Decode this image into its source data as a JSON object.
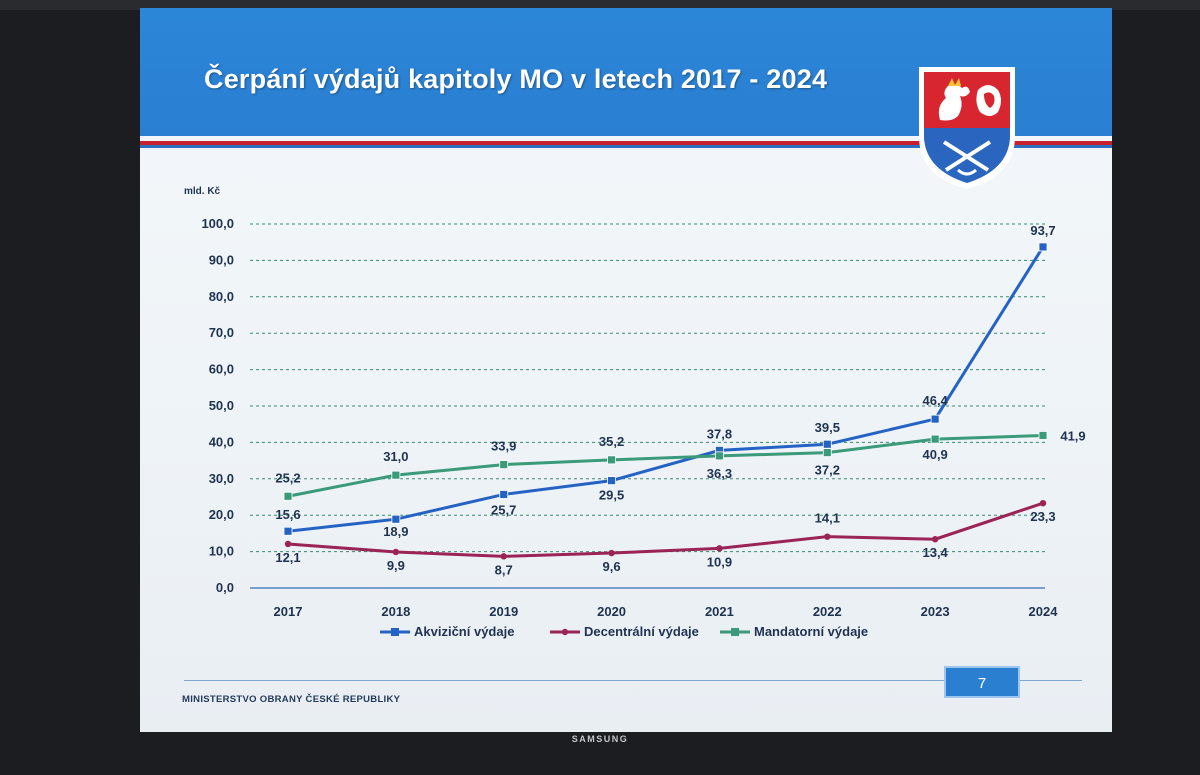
{
  "slide": {
    "title": "Čerpání výdajů kapitoly MO v letech 2017 - 2024",
    "footer": "MINISTERSTVO OBRANY ČESKÉ REPUBLIKY",
    "page_number": "7",
    "emblem_icon": "czech-ministry-of-defence-emblem"
  },
  "device": {
    "brand": "SAMSUNG"
  },
  "colors": {
    "header_blue": "#2a7fd1",
    "akvizicni": "#2463c4",
    "decentralni": "#9a2456",
    "mandatorni": "#3a9a7a"
  },
  "chart_data": {
    "type": "line",
    "ylabel": "mld. Kč",
    "x": [
      "2017",
      "2018",
      "2019",
      "2020",
      "2021",
      "2022",
      "2023",
      "2024"
    ],
    "ylim": [
      0,
      100
    ],
    "yticks": [
      "0,0",
      "10,0",
      "20,0",
      "30,0",
      "40,0",
      "50,0",
      "60,0",
      "70,0",
      "80,0",
      "90,0",
      "100,0"
    ],
    "grid": true,
    "legend_position": "bottom",
    "series": [
      {
        "name": "Akviziční výdaje",
        "color": "#2463c4",
        "values": [
          15.6,
          18.9,
          25.7,
          29.5,
          37.8,
          39.5,
          46.4,
          93.7
        ],
        "labels": [
          "15,6",
          "18,9",
          "25,7",
          "29,5",
          "37,8",
          "39,5",
          "46,4",
          "93,7"
        ]
      },
      {
        "name": "Decentrální výdaje",
        "color": "#9a2456",
        "values": [
          12.1,
          9.9,
          8.7,
          9.6,
          10.9,
          14.1,
          13.4,
          23.3
        ],
        "labels": [
          "12,1",
          "9,9",
          "8,7",
          "9,6",
          "10,9",
          "14,1",
          "13,4",
          "23,3"
        ]
      },
      {
        "name": "Mandatorní výdaje",
        "color": "#3a9a7a",
        "values": [
          25.2,
          31.0,
          33.9,
          35.2,
          36.3,
          37.2,
          40.9,
          41.9
        ],
        "labels": [
          "25,2",
          "31,0",
          "33,9",
          "35,2",
          "36,3",
          "37,2",
          "40,9",
          "41,9"
        ]
      }
    ]
  }
}
